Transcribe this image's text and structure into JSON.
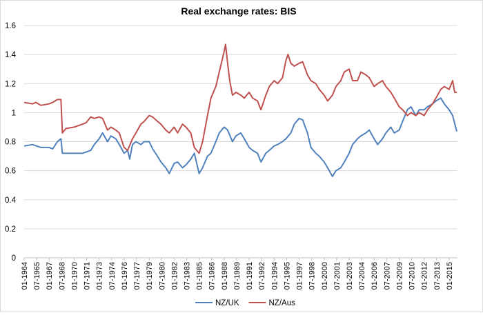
{
  "chart_data": {
    "type": "line",
    "title": "Real exchange rates: BIS",
    "xlabel": "",
    "ylabel": "",
    "ylim": [
      0,
      1.6
    ],
    "yticks": [
      0,
      0.2,
      0.4,
      0.6,
      0.8,
      1,
      1.2,
      1.4,
      1.6
    ],
    "grid": true,
    "legend": "bottom",
    "x_start": "01-1964",
    "x_end": "12-2015",
    "x_tick_labels": [
      "01-1964",
      "07-1965",
      "01-1967",
      "07-1968",
      "01-1970",
      "07-1971",
      "01-1973",
      "07-1974",
      "01-1976",
      "07-1977",
      "01-1979",
      "07-1980",
      "01-1982",
      "07-1983",
      "01-1985",
      "07-1986",
      "01-1988",
      "07-1989",
      "01-1991",
      "07-1992",
      "01-1994",
      "07-1995",
      "01-1997",
      "07-1998",
      "01-2000",
      "07-2001",
      "01-2003",
      "07-2004",
      "01-2006",
      "07-2007",
      "01-2009",
      "07-2010",
      "01-2012",
      "07-2013",
      "01-2015"
    ],
    "series": [
      {
        "name": "NZ/UK",
        "color": "#4f81bd",
        "points": [
          [
            "01-1964",
            0.77
          ],
          [
            "01-1965",
            0.78
          ],
          [
            "01-1966",
            0.76
          ],
          [
            "01-1967",
            0.76
          ],
          [
            "06-1967",
            0.75
          ],
          [
            "01-1968",
            0.8
          ],
          [
            "06-1968",
            0.82
          ],
          [
            "08-1968",
            0.72
          ],
          [
            "01-1969",
            0.72
          ],
          [
            "01-1970",
            0.72
          ],
          [
            "01-1971",
            0.72
          ],
          [
            "01-1972",
            0.74
          ],
          [
            "06-1972",
            0.78
          ],
          [
            "01-1973",
            0.82
          ],
          [
            "06-1973",
            0.86
          ],
          [
            "01-1974",
            0.8
          ],
          [
            "06-1974",
            0.84
          ],
          [
            "01-1975",
            0.82
          ],
          [
            "06-1975",
            0.78
          ],
          [
            "01-1976",
            0.72
          ],
          [
            "06-1976",
            0.74
          ],
          [
            "09-1976",
            0.68
          ],
          [
            "01-1977",
            0.78
          ],
          [
            "06-1977",
            0.8
          ],
          [
            "01-1978",
            0.78
          ],
          [
            "06-1978",
            0.8
          ],
          [
            "01-1979",
            0.8
          ],
          [
            "06-1979",
            0.75
          ],
          [
            "01-1980",
            0.7
          ],
          [
            "06-1980",
            0.66
          ],
          [
            "01-1981",
            0.62
          ],
          [
            "06-1981",
            0.58
          ],
          [
            "01-1982",
            0.65
          ],
          [
            "06-1982",
            0.66
          ],
          [
            "01-1983",
            0.62
          ],
          [
            "06-1983",
            0.64
          ],
          [
            "01-1984",
            0.68
          ],
          [
            "06-1984",
            0.72
          ],
          [
            "01-1985",
            0.58
          ],
          [
            "06-1985",
            0.62
          ],
          [
            "01-1986",
            0.7
          ],
          [
            "06-1986",
            0.72
          ],
          [
            "01-1987",
            0.8
          ],
          [
            "06-1987",
            0.86
          ],
          [
            "01-1988",
            0.9
          ],
          [
            "06-1988",
            0.88
          ],
          [
            "01-1989",
            0.8
          ],
          [
            "06-1989",
            0.84
          ],
          [
            "01-1990",
            0.86
          ],
          [
            "06-1990",
            0.82
          ],
          [
            "01-1991",
            0.76
          ],
          [
            "06-1991",
            0.74
          ],
          [
            "01-1992",
            0.72
          ],
          [
            "06-1992",
            0.66
          ],
          [
            "01-1993",
            0.72
          ],
          [
            "06-1993",
            0.74
          ],
          [
            "01-1994",
            0.77
          ],
          [
            "06-1994",
            0.78
          ],
          [
            "01-1995",
            0.8
          ],
          [
            "06-1995",
            0.82
          ],
          [
            "01-1996",
            0.86
          ],
          [
            "06-1996",
            0.92
          ],
          [
            "01-1997",
            0.96
          ],
          [
            "06-1997",
            0.95
          ],
          [
            "01-1998",
            0.86
          ],
          [
            "06-1998",
            0.76
          ],
          [
            "01-1999",
            0.72
          ],
          [
            "06-1999",
            0.7
          ],
          [
            "01-2000",
            0.66
          ],
          [
            "06-2000",
            0.62
          ],
          [
            "01-2001",
            0.56
          ],
          [
            "06-2001",
            0.6
          ],
          [
            "01-2002",
            0.62
          ],
          [
            "06-2002",
            0.66
          ],
          [
            "01-2003",
            0.72
          ],
          [
            "06-2003",
            0.78
          ],
          [
            "01-2004",
            0.82
          ],
          [
            "06-2004",
            0.84
          ],
          [
            "01-2005",
            0.86
          ],
          [
            "06-2005",
            0.88
          ],
          [
            "01-2006",
            0.82
          ],
          [
            "06-2006",
            0.78
          ],
          [
            "01-2007",
            0.82
          ],
          [
            "06-2007",
            0.86
          ],
          [
            "01-2008",
            0.9
          ],
          [
            "06-2008",
            0.86
          ],
          [
            "01-2009",
            0.88
          ],
          [
            "06-2009",
            0.94
          ],
          [
            "01-2010",
            1.02
          ],
          [
            "06-2010",
            1.04
          ],
          [
            "01-2011",
            0.98
          ],
          [
            "06-2011",
            1.02
          ],
          [
            "01-2012",
            1.02
          ],
          [
            "06-2012",
            1.04
          ],
          [
            "01-2013",
            1.06
          ],
          [
            "06-2013",
            1.08
          ],
          [
            "01-2014",
            1.1
          ],
          [
            "06-2014",
            1.06
          ],
          [
            "01-2015",
            1.02
          ],
          [
            "06-2015",
            0.98
          ],
          [
            "12-2015",
            0.87
          ]
        ]
      },
      {
        "name": "NZ/Aus",
        "color": "#c0504d",
        "points": [
          [
            "01-1964",
            1.07
          ],
          [
            "01-1965",
            1.06
          ],
          [
            "06-1965",
            1.07
          ],
          [
            "01-1966",
            1.05
          ],
          [
            "01-1967",
            1.06
          ],
          [
            "06-1967",
            1.07
          ],
          [
            "01-1968",
            1.09
          ],
          [
            "06-1968",
            1.09
          ],
          [
            "08-1968",
            0.86
          ],
          [
            "01-1969",
            0.89
          ],
          [
            "01-1970",
            0.9
          ],
          [
            "01-1971",
            0.92
          ],
          [
            "06-1971",
            0.93
          ],
          [
            "01-1972",
            0.97
          ],
          [
            "06-1972",
            0.96
          ],
          [
            "01-1973",
            0.97
          ],
          [
            "06-1973",
            0.96
          ],
          [
            "01-1974",
            0.88
          ],
          [
            "06-1974",
            0.9
          ],
          [
            "01-1975",
            0.88
          ],
          [
            "06-1975",
            0.86
          ],
          [
            "01-1976",
            0.76
          ],
          [
            "06-1976",
            0.74
          ],
          [
            "01-1977",
            0.82
          ],
          [
            "06-1977",
            0.86
          ],
          [
            "01-1978",
            0.92
          ],
          [
            "06-1978",
            0.94
          ],
          [
            "01-1979",
            0.98
          ],
          [
            "06-1979",
            0.97
          ],
          [
            "01-1980",
            0.94
          ],
          [
            "06-1980",
            0.92
          ],
          [
            "01-1981",
            0.88
          ],
          [
            "06-1981",
            0.86
          ],
          [
            "01-1982",
            0.9
          ],
          [
            "06-1982",
            0.86
          ],
          [
            "01-1983",
            0.92
          ],
          [
            "06-1983",
            0.9
          ],
          [
            "01-1984",
            0.86
          ],
          [
            "06-1984",
            0.76
          ],
          [
            "01-1985",
            0.72
          ],
          [
            "06-1985",
            0.8
          ],
          [
            "01-1986",
            0.98
          ],
          [
            "06-1986",
            1.1
          ],
          [
            "01-1987",
            1.18
          ],
          [
            "06-1987",
            1.28
          ],
          [
            "01-1988",
            1.42
          ],
          [
            "03-1988",
            1.47
          ],
          [
            "06-1988",
            1.34
          ],
          [
            "09-1988",
            1.22
          ],
          [
            "01-1989",
            1.12
          ],
          [
            "06-1989",
            1.14
          ],
          [
            "01-1990",
            1.12
          ],
          [
            "06-1990",
            1.1
          ],
          [
            "01-1991",
            1.14
          ],
          [
            "06-1991",
            1.1
          ],
          [
            "01-1992",
            1.08
          ],
          [
            "06-1992",
            1.02
          ],
          [
            "01-1993",
            1.12
          ],
          [
            "06-1993",
            1.18
          ],
          [
            "01-1994",
            1.22
          ],
          [
            "06-1994",
            1.2
          ],
          [
            "01-1995",
            1.24
          ],
          [
            "06-1995",
            1.36
          ],
          [
            "09-1995",
            1.4
          ],
          [
            "01-1996",
            1.34
          ],
          [
            "06-1996",
            1.32
          ],
          [
            "01-1997",
            1.34
          ],
          [
            "06-1997",
            1.35
          ],
          [
            "01-1998",
            1.26
          ],
          [
            "06-1998",
            1.22
          ],
          [
            "01-1999",
            1.2
          ],
          [
            "06-1999",
            1.16
          ],
          [
            "01-2000",
            1.12
          ],
          [
            "06-2000",
            1.08
          ],
          [
            "01-2001",
            1.12
          ],
          [
            "06-2001",
            1.18
          ],
          [
            "01-2002",
            1.22
          ],
          [
            "06-2002",
            1.28
          ],
          [
            "01-2003",
            1.3
          ],
          [
            "06-2003",
            1.22
          ],
          [
            "01-2004",
            1.22
          ],
          [
            "06-2004",
            1.28
          ],
          [
            "01-2005",
            1.26
          ],
          [
            "06-2005",
            1.24
          ],
          [
            "01-2006",
            1.18
          ],
          [
            "06-2006",
            1.2
          ],
          [
            "01-2007",
            1.22
          ],
          [
            "06-2007",
            1.18
          ],
          [
            "01-2008",
            1.14
          ],
          [
            "06-2008",
            1.1
          ],
          [
            "01-2009",
            1.04
          ],
          [
            "06-2009",
            1.02
          ],
          [
            "01-2010",
            0.98
          ],
          [
            "06-2010",
            1.0
          ],
          [
            "01-2011",
            0.98
          ],
          [
            "06-2011",
            1.0
          ],
          [
            "01-2012",
            0.98
          ],
          [
            "06-2012",
            1.02
          ],
          [
            "01-2013",
            1.06
          ],
          [
            "06-2013",
            1.1
          ],
          [
            "01-2014",
            1.16
          ],
          [
            "06-2014",
            1.18
          ],
          [
            "01-2015",
            1.16
          ],
          [
            "06-2015",
            1.22
          ],
          [
            "09-2015",
            1.14
          ],
          [
            "12-2015",
            1.14
          ]
        ]
      }
    ]
  }
}
